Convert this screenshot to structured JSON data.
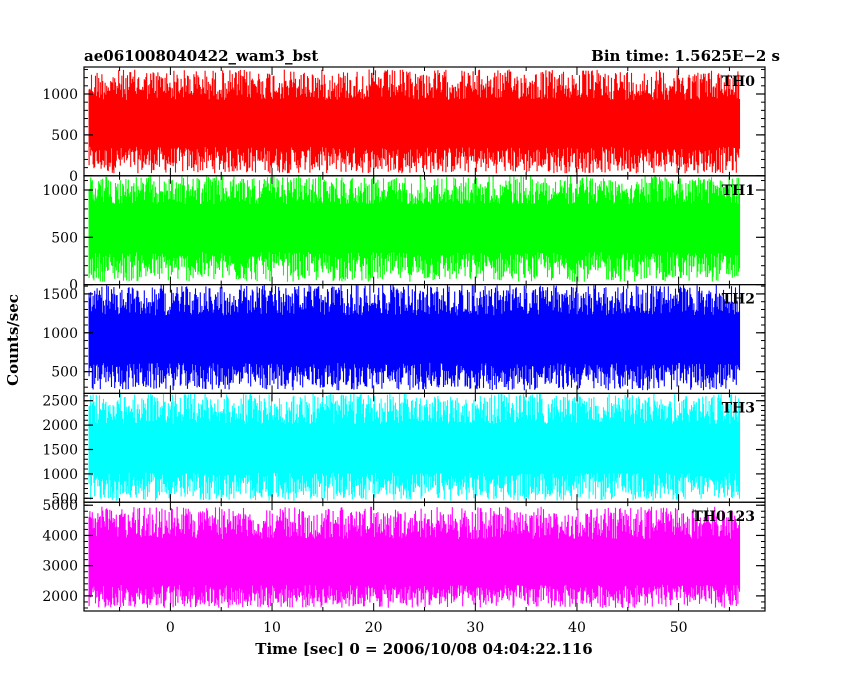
{
  "header": {
    "left_title": "ae061008040422_wam3_bst",
    "right_title": "Bin time: 1.5625E−2 s"
  },
  "chart_data": {
    "type": "line",
    "xlabel": "Time [sec] 0 = 2006/10/08 04:04:22.116",
    "ylabel": "Counts/sec",
    "xlim": [
      -8.5,
      58.5
    ],
    "x_range": [
      -8,
      56
    ],
    "x_ticks": [
      0,
      10,
      20,
      30,
      40,
      50
    ],
    "panels": [
      {
        "name": "TH0",
        "color": "#ff0000",
        "ylim": [
          0,
          1330
        ],
        "ticks": [
          0,
          500,
          1000
        ],
        "low": 30,
        "high": 1300,
        "mid": 620
      },
      {
        "name": "TH1",
        "color": "#00ff00",
        "ylim": [
          0,
          1150
        ],
        "ticks": [
          0,
          500,
          1000
        ],
        "low": 30,
        "high": 1150,
        "mid": 600
      },
      {
        "name": "TH2",
        "color": "#0000ff",
        "ylim": [
          220,
          1620
        ],
        "ticks": [
          500,
          1000,
          1500
        ],
        "low": 260,
        "high": 1620,
        "mid": 900
      },
      {
        "name": "TH3",
        "color": "#00ffff",
        "ylim": [
          420,
          2650
        ],
        "ticks": [
          500,
          1000,
          1500,
          2000,
          2500
        ],
        "low": 450,
        "high": 2650,
        "mid": 1500
      },
      {
        "name": "TH0123",
        "color": "#ff00ff",
        "ylim": [
          1500,
          5100
        ],
        "ticks": [
          2000,
          3000,
          4000,
          5000
        ],
        "low": 1600,
        "high": 4950,
        "mid": 3000
      }
    ]
  }
}
